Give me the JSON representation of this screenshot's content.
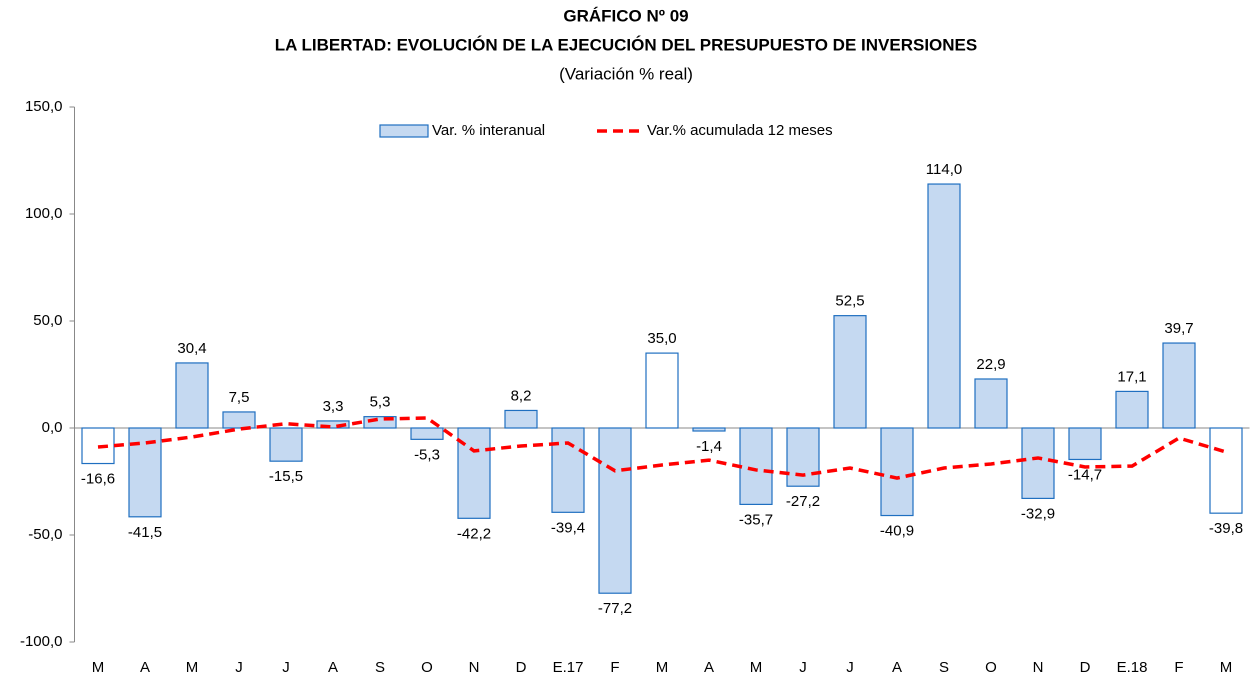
{
  "chart_data": {
    "type": "bar_line",
    "title": "GRÁFICO Nº 09",
    "subtitle": "LA LIBERTAD: EVOLUCIÓN DE LA EJECUCIÓN DEL PRESUPUESTO DE INVERSIONES",
    "note": "(Variación % real)",
    "categories": [
      "M",
      "A",
      "M",
      "J",
      "J",
      "A",
      "S",
      "O",
      "N",
      "D",
      "E.17",
      "F",
      "M",
      "A",
      "M",
      "J",
      "J",
      "A",
      "S",
      "O",
      "N",
      "D",
      "E.18",
      "F",
      "M"
    ],
    "series": [
      {
        "name": "Var. % interanual",
        "type": "bar",
        "color": "#c5d9f1",
        "edge_color": "#1f6fc0",
        "colors": [
          "#ffffff",
          "#c5d9f1",
          "#c5d9f1",
          "#c5d9f1",
          "#c5d9f1",
          "#c5d9f1",
          "#c5d9f1",
          "#c5d9f1",
          "#c5d9f1",
          "#c5d9f1",
          "#c5d9f1",
          "#c5d9f1",
          "#ffffff",
          "#c5d9f1",
          "#c5d9f1",
          "#c5d9f1",
          "#c5d9f1",
          "#c5d9f1",
          "#c5d9f1",
          "#c5d9f1",
          "#c5d9f1",
          "#c5d9f1",
          "#c5d9f1",
          "#c5d9f1",
          "#ffffff"
        ],
        "values": [
          -16.6,
          -41.5,
          30.4,
          7.5,
          -15.5,
          3.3,
          5.3,
          -5.3,
          -42.2,
          8.2,
          -39.4,
          -77.2,
          35.0,
          -1.4,
          -35.7,
          -27.2,
          52.5,
          -40.9,
          114.0,
          22.9,
          -32.9,
          -14.7,
          17.1,
          39.7,
          -39.8
        ],
        "value_labels": [
          "-16,6",
          "-41,5",
          "30,4",
          "7,5",
          "-15,5",
          "3,3",
          "5,3",
          "-5,3",
          "-42,2",
          "8,2",
          "-39,4",
          "-77,2",
          "35,0",
          "-1,4",
          "-35,7",
          "-27,2",
          "52,5",
          "-40,9",
          "114,0",
          "22,9",
          "-32,9",
          "-14,7",
          "17,1",
          "39,7",
          "-39,8"
        ]
      },
      {
        "name": "Var.% acumulada 12 meses",
        "type": "line",
        "color": "#ff0000",
        "dashed": true,
        "values": [
          -8.9,
          -7,
          -4.2,
          -0.5,
          2,
          0.5,
          4.2,
          4.7,
          -10.7,
          -8.4,
          -7,
          -20,
          -17.3,
          -15,
          -19.6,
          -22,
          -18.7,
          -23.4,
          -18.7,
          -16.8,
          -14,
          -18.2,
          -17.8,
          -4.7,
          -11.2
        ]
      }
    ],
    "ylim": [
      -100,
      150
    ],
    "yticks": [
      {
        "value": -100,
        "label": "-100,0"
      },
      {
        "value": -50,
        "label": "-50,0"
      },
      {
        "value": 0,
        "label": "0,0"
      },
      {
        "value": 50,
        "label": "50,0"
      },
      {
        "value": 100,
        "label": "100,0"
      },
      {
        "value": 150,
        "label": "150,0"
      }
    ],
    "grid": false,
    "legend": "top"
  }
}
